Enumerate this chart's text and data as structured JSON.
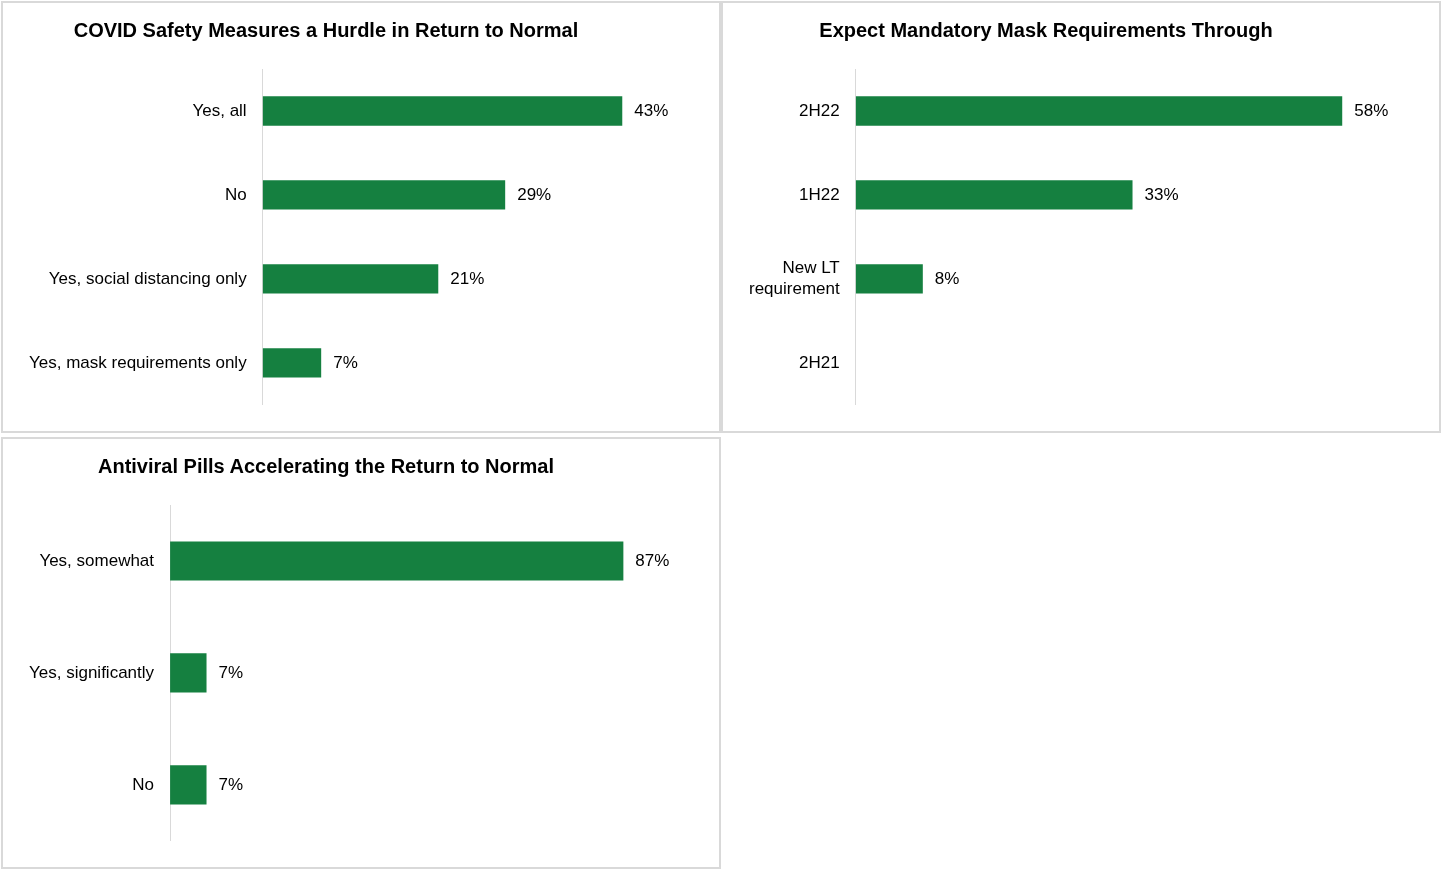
{
  "chart_data": [
    {
      "type": "bar",
      "orientation": "horizontal",
      "title": "COVID Safety Measures a Hurdle in Return to Normal",
      "categories": [
        "Yes, all",
        "No",
        "Yes, social distancing only",
        "Yes, mask requirements only"
      ],
      "values": [
        43,
        29,
        21,
        7
      ],
      "value_labels": [
        "43%",
        "29%",
        "21%",
        "7%"
      ],
      "color": "#158040",
      "legend": false,
      "tick_labels": "y"
    },
    {
      "type": "bar",
      "orientation": "horizontal",
      "title": "Expect Mandatory Mask Requirements Through",
      "categories": [
        "2H22",
        "1H22",
        "New LT\nrequirement",
        "2H21"
      ],
      "values": [
        58,
        33,
        8,
        null
      ],
      "value_labels": [
        "58%",
        "33%",
        "8%",
        null
      ],
      "color": "#158040",
      "legend": false,
      "tick_labels": "y"
    },
    {
      "type": "bar",
      "orientation": "horizontal",
      "title": "Antiviral Pills Accelerating the Return to Normal",
      "categories": [
        "Yes, somewhat",
        "Yes, significantly",
        "No"
      ],
      "values": [
        87,
        7,
        7
      ],
      "value_labels": [
        "87%",
        "7%",
        "7%"
      ],
      "color": "#158040",
      "legend": false,
      "tick_labels": "y"
    }
  ]
}
